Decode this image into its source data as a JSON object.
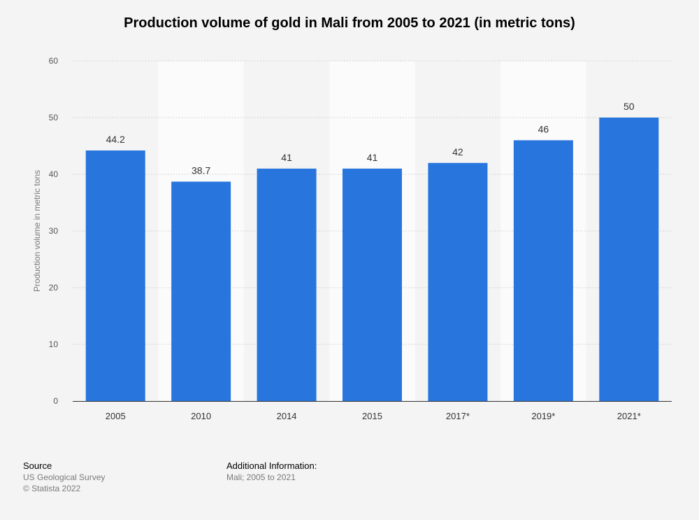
{
  "chart_data": {
    "type": "bar",
    "title": "Production volume of gold in Mali from 2005 to 2021 (in metric tons)",
    "ylabel": "Production volume in metric tons",
    "xlabel": "",
    "categories": [
      "2005",
      "2010",
      "2014",
      "2015",
      "2017*",
      "2019*",
      "2021*"
    ],
    "values": [
      44.2,
      38.7,
      41,
      41,
      42,
      46,
      50
    ],
    "value_labels": [
      "44.2",
      "38.7",
      "41",
      "41",
      "42",
      "46",
      "50"
    ],
    "ylim": [
      0,
      60
    ],
    "yticks": [
      0,
      10,
      20,
      30,
      40,
      50,
      60
    ],
    "grid": true,
    "bar_color": "#2876dd",
    "band_color": "#fbfbfb"
  },
  "footer": {
    "source_heading": "Source",
    "source_lines": [
      "US Geological Survey",
      "© Statista 2022"
    ],
    "info_heading": "Additional Information:",
    "info_lines": [
      "Mali; 2005 to 2021"
    ]
  }
}
